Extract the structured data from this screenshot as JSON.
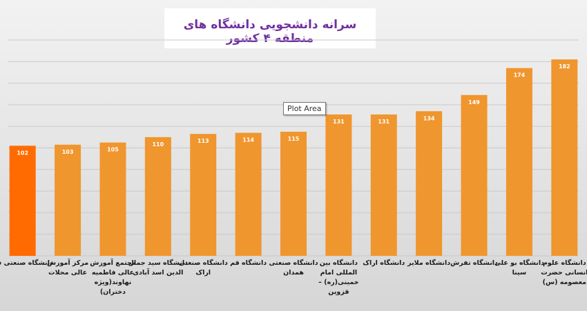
{
  "chart_data": {
    "type": "bar",
    "title": "سرانه دانشجویی دانشگاه های منطقه ۴ کشور",
    "xlabel": "",
    "ylabel": "",
    "ylim": [
      0,
      200
    ],
    "grid": true,
    "legend": "none",
    "categories": [
      [
        "دانشگاه صنعتی قم"
      ],
      [
        "مرکز آموزش",
        "عالی محلات"
      ],
      [
        "مجتمع آموزش",
        "عالی فاطمیه",
        "نهاوند(ویژه",
        "دختران)"
      ],
      [
        "دانشگاه سید جمال",
        "الدین اسد آبادی"
      ],
      [
        "دانشگاه صنعتی",
        "اراک"
      ],
      [
        "دانشگاه قم"
      ],
      [
        "دانشگاه صنعتی",
        "همدان"
      ],
      [
        "دانشگاه بین",
        "المللی امام",
        "خمینی(ره) –",
        "قزوین"
      ],
      [
        "دانشگاه اراک"
      ],
      [
        "دانشگاه ملایر"
      ],
      [
        "دانشگاه تفرش"
      ],
      [
        "دانشگاه بو علی",
        "سینا"
      ],
      [
        "دانشگاه علوم",
        "انسانی حضرت",
        "معصومه (س)"
      ]
    ],
    "values": [
      102,
      103,
      105,
      110,
      113,
      114,
      115,
      131,
      131,
      134,
      149,
      174,
      182
    ],
    "data_labels": [
      "102",
      "103",
      "105",
      "110",
      "113",
      "114",
      "115",
      "131",
      "131",
      "134",
      "149",
      "174",
      "182"
    ],
    "colors": {
      "bar": "#f0962e",
      "highlight_bar": "#ff6b00",
      "label_text": "#ffffff",
      "axis_text": "#1a1a1a",
      "gridline": "#c9c9c9"
    },
    "highlight_index": 0
  },
  "tooltip": "Plot Area"
}
